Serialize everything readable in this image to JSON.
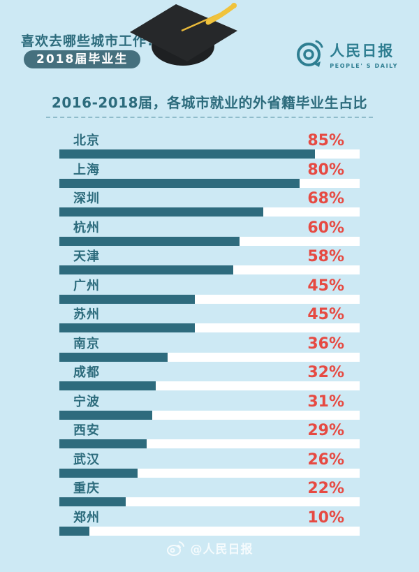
{
  "page": {
    "background_color": "#cde9f4"
  },
  "header": {
    "title": "喜欢去哪些城市工作?",
    "badge": "2018届毕业生",
    "logo": {
      "name": "人民日报",
      "subtitle": "PEOPLE' S DAILY"
    }
  },
  "chart_data": {
    "type": "bar",
    "orientation": "horizontal",
    "title": "2016-2018届，各城市就业的外省籍毕业生占比",
    "categories": [
      "北京",
      "上海",
      "深圳",
      "杭州",
      "天津",
      "广州",
      "苏州",
      "南京",
      "成都",
      "宁波",
      "西安",
      "武汉",
      "重庆",
      "郑州"
    ],
    "values": [
      85,
      80,
      68,
      60,
      58,
      45,
      45,
      36,
      32,
      31,
      29,
      26,
      22,
      10
    ],
    "unit": "%",
    "xlim": [
      0,
      100
    ],
    "grid": false,
    "legend": false,
    "bar_color": "#2e6b7d",
    "track_color": "#ffffff",
    "value_color": "#e64a42",
    "label_color": "#2c6b7c"
  },
  "footer": {
    "watermark": "@人民日报"
  }
}
